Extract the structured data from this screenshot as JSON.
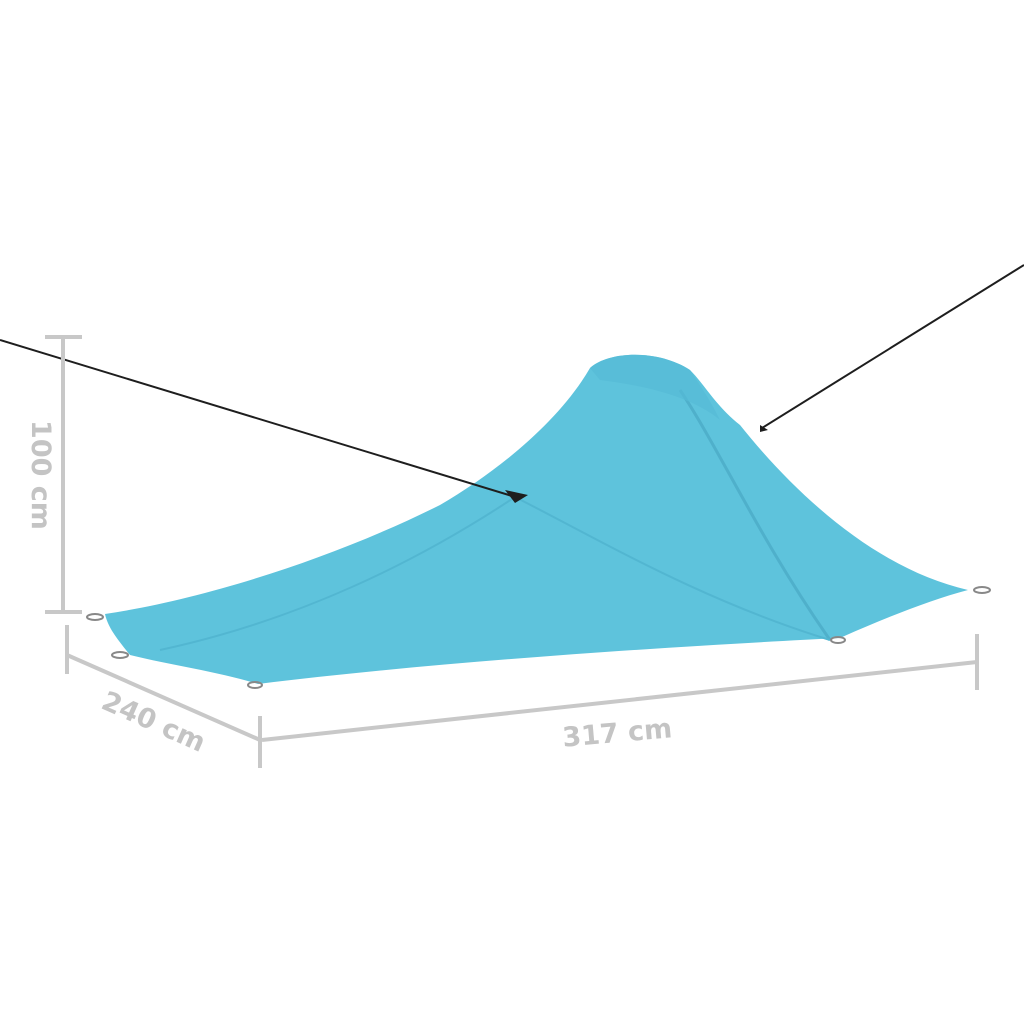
{
  "dimensions": {
    "height_label": "100 cm",
    "depth_label": "240 cm",
    "width_label": "317 cm"
  },
  "colors": {
    "tent": "#5ec3dc",
    "tent_shadow": "#4fb4cf",
    "dimension_lines": "#c8c8c8",
    "rope": "#1e1e1e"
  }
}
